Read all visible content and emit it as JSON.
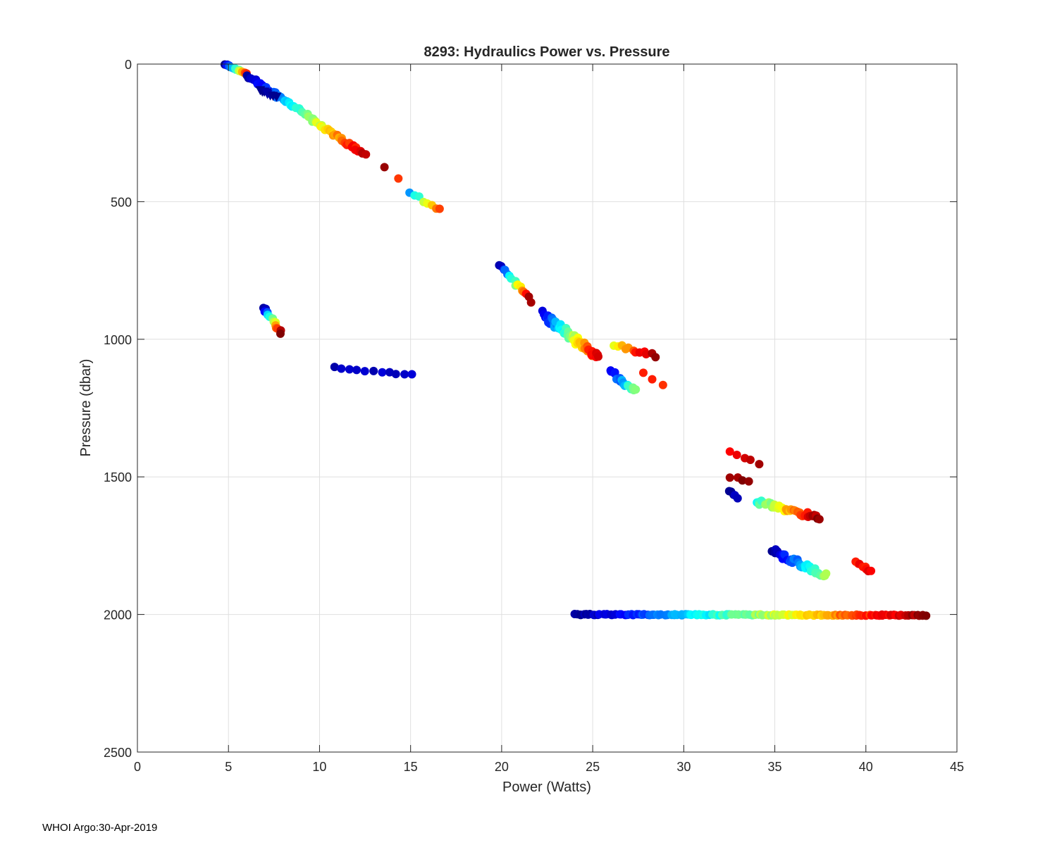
{
  "chart_data": {
    "type": "scatter",
    "title": "8293: Hydraulics Power vs. Pressure",
    "xlabel": "Power (Watts)",
    "ylabel": "Pressure (dbar)",
    "xlim": [
      0,
      45
    ],
    "ylim": [
      0,
      2500
    ],
    "y_reversed": true,
    "grid": true,
    "xticks": [
      0,
      5,
      10,
      15,
      20,
      25,
      30,
      35,
      40,
      45
    ],
    "yticks": [
      0,
      500,
      1000,
      1500,
      2000,
      2500
    ],
    "color_scale": "jet (dark blue = early profiles, dark red = late profiles)",
    "colormap": [
      "#00008f",
      "#0000ff",
      "#0080ff",
      "#00ffff",
      "#80ff80",
      "#ffff00",
      "#ff8000",
      "#ff0000",
      "#800000"
    ],
    "clusters": [
      {
        "name": "near-surface descent",
        "x0": 4.8,
        "x1": 6.0,
        "p0": 0,
        "p1": 35,
        "c0": 0.0,
        "c1": 0.85,
        "n": 16,
        "jitter": 4
      },
      {
        "name": "shallow diagonal",
        "x0": 6.0,
        "x1": 12.5,
        "p0": 40,
        "p1": 330,
        "c0": 0.0,
        "c1": 0.95,
        "n": 70,
        "jitter": 14
      },
      {
        "name": "triangle markers",
        "x0": 6.7,
        "x1": 7.6,
        "p0": 95,
        "p1": 120,
        "c0": 0.0,
        "c1": 0.0,
        "n": 8,
        "jitter": 5,
        "marker": "triangle"
      },
      {
        "name": "500 dbar group",
        "x0": 15.0,
        "x1": 16.6,
        "p0": 470,
        "p1": 530,
        "c0": 0.3,
        "c1": 0.85,
        "n": 8,
        "jitter": 12
      },
      {
        "name": "isolated 380",
        "x0": 13.5,
        "x1": 14.3,
        "p0": 375,
        "p1": 415,
        "c0": 0.95,
        "c1": 0.85,
        "n": 2,
        "jitter": 3
      },
      {
        "name": "960 dbar small group",
        "x0": 6.9,
        "x1": 7.9,
        "p0": 885,
        "p1": 975,
        "c0": 0.0,
        "c1": 1.0,
        "n": 14,
        "jitter": 10
      },
      {
        "name": "1110 dbar dark group",
        "x0": 10.8,
        "x1": 15.1,
        "p0": 1100,
        "p1": 1130,
        "c0": 0.03,
        "c1": 0.07,
        "n": 11,
        "jitter": 8
      },
      {
        "name": "750-850 group",
        "x0": 19.9,
        "x1": 21.6,
        "p0": 730,
        "p1": 860,
        "c0": 0.0,
        "c1": 1.0,
        "n": 16,
        "jitter": 16
      },
      {
        "name": "900-1070 group",
        "x0": 22.3,
        "x1": 25.3,
        "p0": 910,
        "p1": 1070,
        "c0": 0.1,
        "c1": 0.95,
        "n": 60,
        "jitter": 30
      },
      {
        "name": "1040 right group",
        "x0": 26.2,
        "x1": 28.4,
        "p0": 1020,
        "p1": 1060,
        "c0": 0.6,
        "c1": 1.0,
        "n": 12,
        "jitter": 12
      },
      {
        "name": "1130-1190 group",
        "x0": 26.0,
        "x1": 27.4,
        "p0": 1120,
        "p1": 1190,
        "c0": 0.1,
        "c1": 0.5,
        "n": 20,
        "jitter": 18
      },
      {
        "name": "1120-1170 red",
        "x0": 27.8,
        "x1": 28.8,
        "p0": 1120,
        "p1": 1170,
        "c0": 0.88,
        "c1": 0.82,
        "n": 3,
        "jitter": 8
      },
      {
        "name": "1410-1450 group",
        "x0": 32.6,
        "x1": 34.1,
        "p0": 1410,
        "p1": 1450,
        "c0": 0.85,
        "c1": 0.95,
        "n": 5,
        "jitter": 10
      },
      {
        "name": "1500 dark red",
        "x0": 32.6,
        "x1": 33.5,
        "p0": 1500,
        "p1": 1515,
        "c0": 1.0,
        "c1": 1.0,
        "n": 4,
        "jitter": 6
      },
      {
        "name": "1550-1575 navy",
        "x0": 32.5,
        "x1": 33.0,
        "p0": 1550,
        "p1": 1575,
        "c0": 0.0,
        "c1": 0.03,
        "n": 5,
        "jitter": 6
      },
      {
        "name": "1590-1650 group",
        "x0": 34.0,
        "x1": 37.5,
        "p0": 1590,
        "p1": 1650,
        "c0": 0.4,
        "c1": 1.0,
        "n": 35,
        "jitter": 18
      },
      {
        "name": "1770-1860 group",
        "x0": 34.9,
        "x1": 37.8,
        "p0": 1770,
        "p1": 1860,
        "c0": 0.0,
        "c1": 0.55,
        "n": 35,
        "jitter": 22
      },
      {
        "name": "1810-1840 red",
        "x0": 39.4,
        "x1": 40.3,
        "p0": 1810,
        "p1": 1845,
        "c0": 0.85,
        "c1": 0.88,
        "n": 8,
        "jitter": 10
      },
      {
        "name": "2000 dbar line",
        "x0": 24.0,
        "x1": 43.3,
        "p0": 2000,
        "p1": 2003,
        "c0": 0.0,
        "c1": 1.0,
        "n": 150,
        "jitter": 4
      }
    ]
  },
  "footer": {
    "text": "WHOI Argo:30-Apr-2019"
  }
}
